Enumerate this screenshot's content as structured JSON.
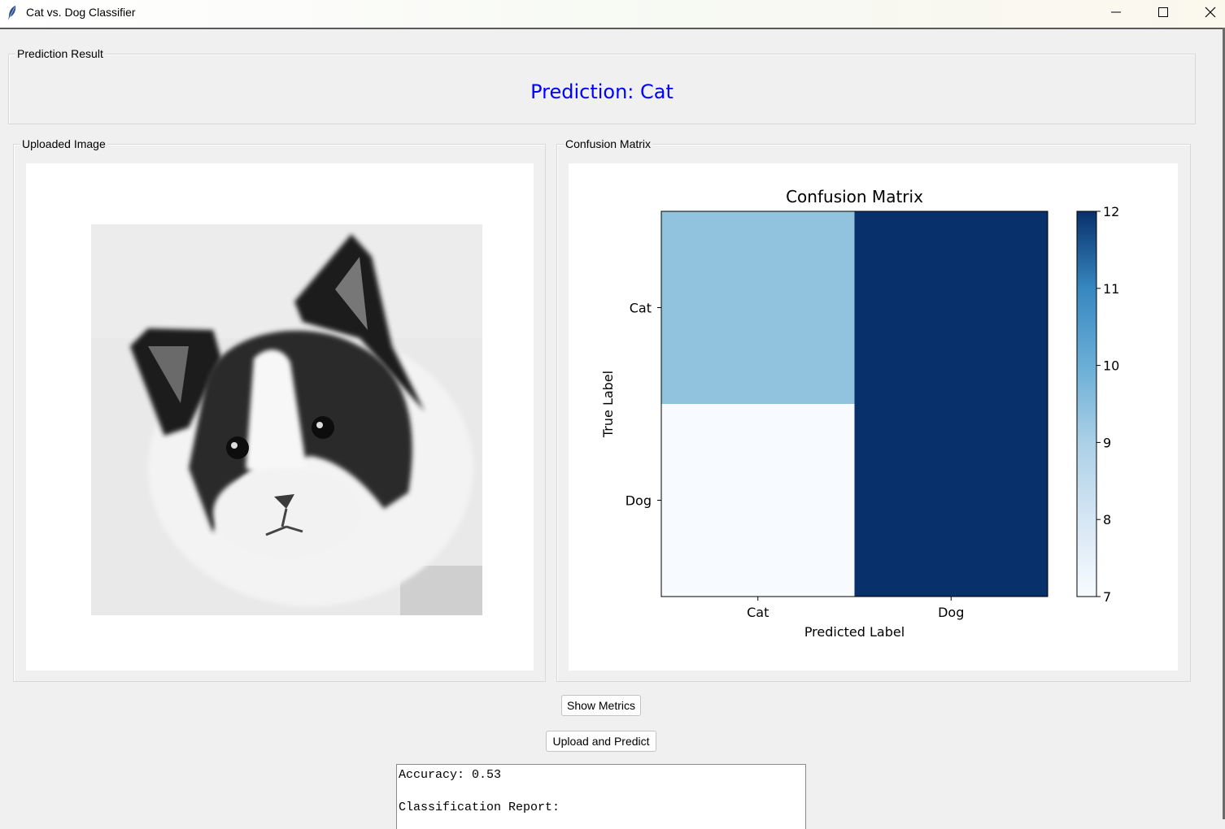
{
  "window": {
    "title": "Cat vs. Dog Classifier",
    "minimize_icon": "minimize-icon",
    "maximize_icon": "maximize-icon",
    "close_icon": "close-icon"
  },
  "prediction_frame": {
    "label": "Prediction Result",
    "text": "Prediction: Cat",
    "text_color": "#0000ff"
  },
  "image_frame": {
    "label": "Uploaded Image"
  },
  "matrix_frame": {
    "label": "Confusion Matrix"
  },
  "buttons": {
    "show_metrics": "Show Metrics",
    "upload_predict": "Upload and Predict"
  },
  "metrics_text": {
    "line1": "Accuracy: 0.53",
    "line2": "",
    "line3": "Classification Report:"
  },
  "chart_data": {
    "type": "heatmap",
    "title": "Confusion Matrix",
    "xlabel": "Predicted Label",
    "ylabel": "True Label",
    "x_categories": [
      "Cat",
      "Dog"
    ],
    "y_categories": [
      "Cat",
      "Dog"
    ],
    "values": [
      [
        9,
        12
      ],
      [
        7,
        12
      ]
    ],
    "colormap": "Blues",
    "colorbar": {
      "min": 7,
      "max": 12,
      "ticks": [
        7,
        8,
        9,
        10,
        11,
        12
      ]
    },
    "cell_colors": [
      [
        "#91c3de",
        "#08306b"
      ],
      [
        "#f7fbff",
        "#08306b"
      ]
    ]
  }
}
